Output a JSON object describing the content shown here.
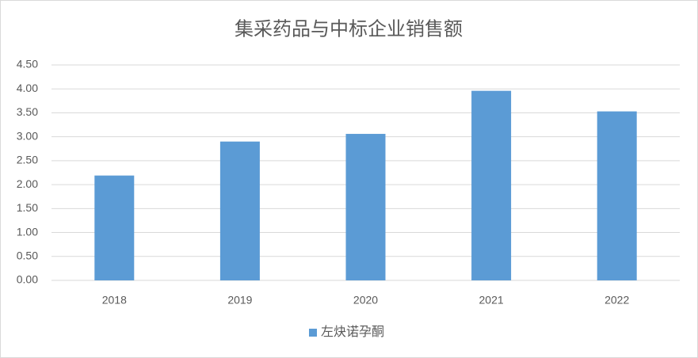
{
  "chart_data": {
    "type": "bar",
    "title": "集采药品与中标企业销售额",
    "categories": [
      "2018",
      "2019",
      "2020",
      "2021",
      "2022"
    ],
    "series": [
      {
        "name": "左炔诺孕酮",
        "color": "#5b9bd5",
        "values": [
          2.19,
          2.9,
          3.06,
          3.96,
          3.53
        ]
      }
    ],
    "ylim": [
      0,
      4.5
    ],
    "yticks": [
      {
        "value": 0,
        "label": "0.00"
      },
      {
        "value": 0.5,
        "label": "0.50"
      },
      {
        "value": 1,
        "label": "1.00"
      },
      {
        "value": 1.5,
        "label": "1.50"
      },
      {
        "value": 2,
        "label": "2.00"
      },
      {
        "value": 2.5,
        "label": "2.50"
      },
      {
        "value": 3,
        "label": "3.00"
      },
      {
        "value": 3.5,
        "label": "3.50"
      },
      {
        "value": 4,
        "label": "4.00"
      },
      {
        "value": 4.5,
        "label": "4.50"
      }
    ],
    "grid": true,
    "legend": "bottom"
  }
}
